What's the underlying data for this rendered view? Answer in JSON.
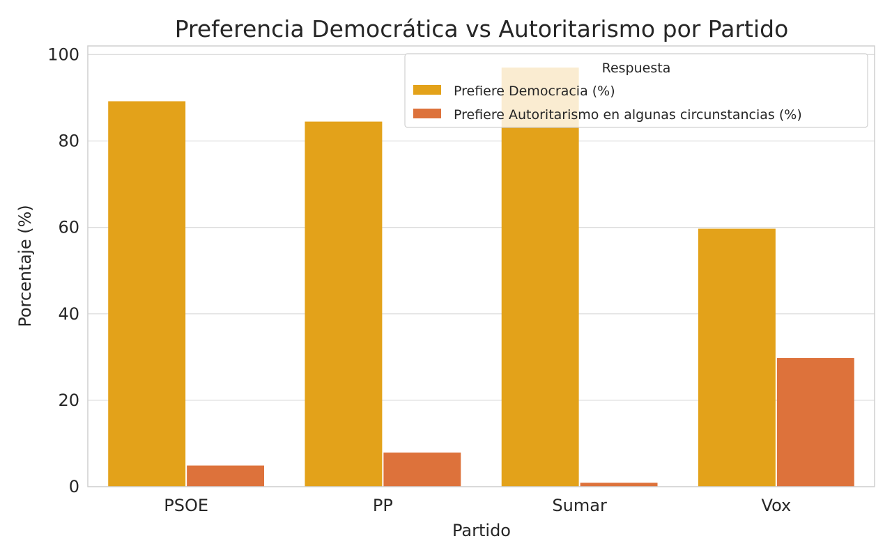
{
  "chart_data": {
    "type": "bar",
    "title": "Preferencia Democrática vs Autoritarismo por Partido",
    "xlabel": "Partido",
    "ylabel": "Porcentaje (%)",
    "categories": [
      "PSOE",
      "PP",
      "Sumar",
      "Vox"
    ],
    "series": [
      {
        "name": "Prefiere Democracia (%)",
        "values": [
          89.2,
          84.5,
          97.0,
          59.7
        ],
        "color": "#e3a21a"
      },
      {
        "name": "Prefiere Autoritarismo en algunas circunstancias (%)",
        "values": [
          4.9,
          7.9,
          0.9,
          29.8
        ],
        "color": "#dd723b"
      }
    ],
    "ylim": [
      0,
      102
    ],
    "yticks": [
      0,
      20,
      40,
      60,
      80,
      100
    ],
    "grid": true,
    "legend": {
      "title": "Respuesta",
      "placement": "top-right"
    }
  }
}
